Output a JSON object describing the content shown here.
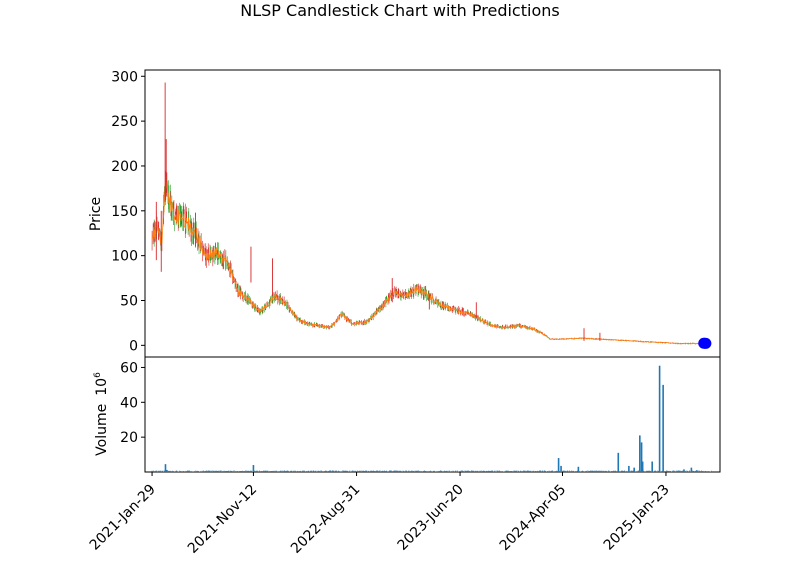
{
  "chart_data": [
    {
      "type": "candlestick",
      "title": "NLSP Candlestick Chart with Predictions",
      "ylabel": "Price",
      "ylim": [
        -13,
        307
      ],
      "yticks": [
        0,
        50,
        100,
        150,
        200,
        250,
        300
      ],
      "xlim": [
        "2021-01-09",
        "2025-06-25"
      ],
      "xticks": [
        "2021-Jan-29",
        "2021-Nov-12",
        "2022-Aug-31",
        "2023-Jun-20",
        "2024-Apr-05",
        "2025-Jan-23"
      ],
      "up_color": "#2ca02c",
      "down_color": "#d62728",
      "line_color": "#ff7f0e",
      "close_trend": [
        [
          "2021-01-29",
          120
        ],
        [
          "2021-02-12",
          135
        ],
        [
          "2021-02-25",
          115
        ],
        [
          "2021-03-08",
          185
        ],
        [
          "2021-03-16",
          165
        ],
        [
          "2021-04-01",
          145
        ],
        [
          "2021-05-01",
          140
        ],
        [
          "2021-06-01",
          125
        ],
        [
          "2021-07-01",
          100
        ],
        [
          "2021-08-01",
          103
        ],
        [
          "2021-09-01",
          92
        ],
        [
          "2021-10-01",
          60
        ],
        [
          "2021-11-01",
          50
        ],
        [
          "2021-12-01",
          37
        ],
        [
          "2022-01-15",
          55
        ],
        [
          "2022-02-15",
          45
        ],
        [
          "2022-03-20",
          28
        ],
        [
          "2022-04-15",
          24
        ],
        [
          "2022-05-15",
          22
        ],
        [
          "2022-06-15",
          20
        ],
        [
          "2022-07-01",
          25
        ],
        [
          "2022-07-20",
          35
        ],
        [
          "2022-08-20",
          24
        ],
        [
          "2022-09-30",
          26
        ],
        [
          "2022-11-15",
          45
        ],
        [
          "2022-12-15",
          60
        ],
        [
          "2023-01-15",
          55
        ],
        [
          "2023-02-15",
          62
        ],
        [
          "2023-03-15",
          58
        ],
        [
          "2023-04-15",
          48
        ],
        [
          "2023-05-15",
          42
        ],
        [
          "2023-06-20",
          38
        ],
        [
          "2023-07-20",
          35
        ],
        [
          "2023-08-20",
          28
        ],
        [
          "2023-09-20",
          22
        ],
        [
          "2023-10-20",
          20
        ],
        [
          "2023-12-01",
          22
        ],
        [
          "2024-01-15",
          18
        ],
        [
          "2024-02-15",
          12
        ],
        [
          "2024-03-01",
          7
        ],
        [
          "2024-04-05",
          7
        ],
        [
          "2024-06-01",
          8
        ],
        [
          "2024-09-01",
          6
        ],
        [
          "2024-12-01",
          4
        ],
        [
          "2025-03-01",
          2
        ],
        [
          "2025-06-01",
          2
        ]
      ],
      "spikes": [
        {
          "date": "2021-03-07",
          "high": 293,
          "low": 160
        },
        {
          "date": "2021-03-10",
          "high": 230,
          "low": 170
        },
        {
          "date": "2021-02-10",
          "high": 160,
          "low": 95
        },
        {
          "date": "2021-02-24",
          "high": 150,
          "low": 82
        },
        {
          "date": "2021-06-01",
          "high": 148,
          "low": 110
        },
        {
          "date": "2021-11-05",
          "high": 110,
          "low": 70
        },
        {
          "date": "2022-01-05",
          "high": 97,
          "low": 55
        },
        {
          "date": "2022-12-10",
          "high": 75,
          "low": 48
        },
        {
          "date": "2023-03-25",
          "high": 58,
          "low": 40
        },
        {
          "date": "2023-08-05",
          "high": 48,
          "low": 30
        },
        {
          "date": "2024-06-05",
          "high": 19,
          "low": 5
        },
        {
          "date": "2024-07-20",
          "high": 14,
          "low": 5
        }
      ],
      "predictions": [
        {
          "date": "2025-05-10",
          "value": 2.3
        },
        {
          "date": "2025-05-13",
          "value": 2.3
        },
        {
          "date": "2025-05-16",
          "value": 2.2
        }
      ],
      "prediction_color": "#0000ff"
    },
    {
      "type": "bar",
      "ylabel_main": "Volume",
      "ylabel_unit_base": "10",
      "ylabel_unit_exp": "6",
      "ylim": [
        0,
        66
      ],
      "yticks": [
        20,
        40,
        60
      ],
      "bar_color": "#1f77b4",
      "bars": [
        [
          "2021-01-29",
          0.6
        ],
        [
          "2021-03-08",
          4.5
        ],
        [
          "2021-03-12",
          1.2
        ],
        [
          "2021-11-12",
          4.0
        ],
        [
          "2024-02-01",
          0.8
        ],
        [
          "2024-03-25",
          8.0
        ],
        [
          "2024-04-01",
          3.5
        ],
        [
          "2024-05-20",
          3.0
        ],
        [
          "2024-09-10",
          11.0
        ],
        [
          "2024-10-10",
          3.5
        ],
        [
          "2024-10-25",
          2.5
        ],
        [
          "2024-11-10",
          21.0
        ],
        [
          "2024-11-15",
          17.0
        ],
        [
          "2024-11-18",
          6.0
        ],
        [
          "2024-12-15",
          6.0
        ],
        [
          "2025-01-05",
          61.0
        ],
        [
          "2025-01-15",
          50.0
        ],
        [
          "2025-03-15",
          1.5
        ],
        [
          "2025-04-05",
          2.5
        ],
        [
          "2025-04-20",
          1.0
        ]
      ]
    }
  ]
}
